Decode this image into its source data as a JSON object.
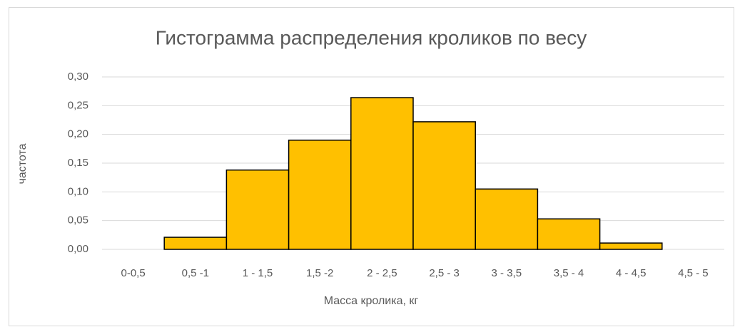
{
  "chart_data": {
    "type": "bar",
    "title": "Гистограмма распределения кроликов по весу",
    "x_label": "Масса кролика, кг",
    "y_label": "частота",
    "categories": [
      "0-0,5",
      "0,5 -1",
      "1 - 1,5",
      "1,5 -2",
      "2 - 2,5",
      "2,5 - 3",
      "3 - 3,5",
      "3,5 - 4",
      "4 - 4,5",
      "4,5 - 5"
    ],
    "values": [
      0,
      0.021,
      0.138,
      0.19,
      0.264,
      0.222,
      0.105,
      0.053,
      0.011,
      0
    ],
    "color": "#ffc000",
    "ylim": [
      0,
      0.3
    ],
    "yticks": [
      {
        "value": 0,
        "label": "0,00"
      },
      {
        "value": 0.05,
        "label": "0,05"
      },
      {
        "value": 0.1,
        "label": "0,10"
      },
      {
        "value": 0.15,
        "label": "0,15"
      },
      {
        "value": 0.2,
        "label": "0,20"
      },
      {
        "value": 0.25,
        "label": "0,25"
      },
      {
        "value": 0.3,
        "label": "0,30"
      }
    ],
    "grid": true
  }
}
